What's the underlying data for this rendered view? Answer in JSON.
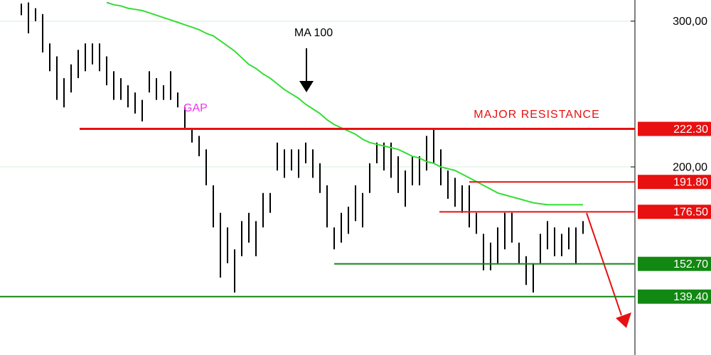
{
  "chart_data": {
    "type": "ohlc",
    "log_scale": true,
    "ylim": [
      118.5,
      318.2
    ],
    "yticks": [
      {
        "value": 300,
        "label": "300,00"
      },
      {
        "value": 200,
        "label": "200,00"
      }
    ],
    "grid": true,
    "bar_color": "#000000",
    "high": [
      315,
      316,
      311,
      306,
      282,
      272,
      256,
      266,
      277,
      282,
      282,
      282,
      272,
      261,
      256,
      251,
      246,
      241,
      261,
      256,
      251,
      261,
      246,
      236,
      223,
      218,
      210,
      190,
      176,
      169,
      159,
      172,
      176,
      172,
      186,
      186,
      214,
      210,
      210,
      210,
      214,
      210,
      202,
      190,
      169,
      176,
      179,
      190,
      186,
      202,
      214,
      214,
      214,
      206,
      198,
      206,
      206,
      218,
      223,
      210,
      198,
      194,
      190,
      190,
      176,
      166,
      162,
      169,
      176,
      176,
      162,
      156,
      153,
      166,
      172,
      169,
      166,
      169,
      169,
      172
    ],
    "low": [
      305,
      290,
      300,
      275,
      261,
      241,
      236,
      246,
      256,
      261,
      266,
      261,
      251,
      241,
      241,
      236,
      232,
      227,
      246,
      241,
      241,
      241,
      236,
      223,
      214,
      206,
      190,
      169,
      147,
      153,
      141,
      156,
      162,
      156,
      169,
      176,
      198,
      194,
      198,
      194,
      202,
      194,
      186,
      169,
      159,
      162,
      166,
      172,
      169,
      186,
      202,
      198,
      194,
      186,
      179,
      190,
      190,
      198,
      202,
      190,
      183,
      179,
      176,
      169,
      166,
      150,
      150,
      153,
      159,
      162,
      153,
      144,
      141,
      153,
      159,
      156,
      156,
      159,
      153,
      166
    ],
    "ma": {
      "name": "MA 100",
      "color": "#33dd33",
      "values": [
        null,
        null,
        null,
        null,
        null,
        null,
        null,
        null,
        null,
        null,
        null,
        null,
        316,
        314,
        313,
        311,
        310,
        309,
        307,
        305,
        303,
        301,
        299,
        297,
        295,
        293,
        290,
        288,
        284,
        280,
        276,
        271,
        266,
        263,
        259,
        256,
        252,
        248,
        245,
        242,
        238,
        235,
        232,
        228,
        225,
        223,
        221,
        219,
        216,
        214,
        213,
        212,
        211,
        210,
        208,
        206,
        205,
        203,
        202,
        200,
        199,
        198,
        196,
        194,
        192,
        190,
        188,
        186,
        185,
        184,
        183,
        182,
        181,
        180.5,
        180,
        180,
        180,
        180,
        180,
        180
      ]
    },
    "levels": [
      {
        "value": 222.3,
        "label": "222.30",
        "color": "#e81010"
      },
      {
        "value": 191.8,
        "label": "191.80",
        "color": "#e81010"
      },
      {
        "value": 176.5,
        "label": "176.50",
        "color": "#e81010"
      },
      {
        "value": 152.7,
        "label": "152.70",
        "color": "#118811"
      },
      {
        "value": 139.4,
        "label": "139.40",
        "color": "#118811"
      }
    ],
    "annotations": [
      {
        "text": "MA 100",
        "color": "#000000"
      },
      {
        "text": "GAP",
        "color": "#ee33ee"
      },
      {
        "text": "MAJOR RESISTANCE",
        "color": "#e81010"
      }
    ]
  }
}
